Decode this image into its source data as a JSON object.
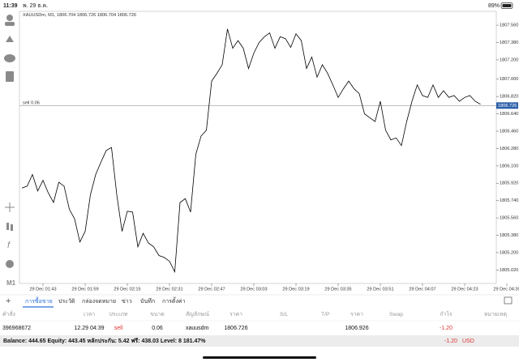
{
  "status_bar": {
    "time": "11:39",
    "date": "พ. 29 ธ.ค.",
    "battery": "89%"
  },
  "chart_data": {
    "type": "line",
    "title": "XAUUSDm, M1, 1806.704 1806.726 1806.704 1806.726",
    "timeframe": "M1",
    "color": "#000000",
    "categories": [
      null,
      null,
      null,
      null,
      "29 Dec 01:43",
      null,
      null,
      null,
      null,
      null,
      null,
      null,
      "29 Dec 01:59",
      null,
      null,
      null,
      null,
      null,
      null,
      null,
      "29 Dec 02:15",
      null,
      null,
      null,
      null,
      null,
      null,
      null,
      "29 Dec 02:31",
      null,
      null,
      null,
      null,
      null,
      null,
      null,
      "29 Dec 02:47",
      null,
      null,
      null,
      null,
      null,
      null,
      null,
      "29 Dec 03:03",
      null,
      null,
      null,
      null,
      null,
      null,
      null,
      "29 Dec 03:19",
      null,
      null,
      null,
      null,
      null,
      null,
      null,
      "29 Dec 03:35",
      null,
      null,
      null,
      null,
      null,
      null,
      null,
      "29 Dec 03:51",
      null,
      null,
      null,
      null,
      null,
      null,
      null,
      "29 Dec 04:07",
      null,
      null,
      null,
      null,
      null,
      null,
      null,
      "29 Dec 04:23",
      null,
      null,
      null,
      null,
      null,
      null,
      null,
      "29 Dec 04:39"
    ],
    "values": [
      1805.87,
      1805.89,
      1806.01,
      1805.84,
      1805.95,
      1805.82,
      1805.72,
      1805.93,
      1805.89,
      1805.65,
      1805.55,
      1805.31,
      1805.42,
      1805.8,
      1806.01,
      1806.14,
      1806.26,
      1806.29,
      1805.8,
      1805.42,
      1805.63,
      1805.62,
      1805.26,
      1805.4,
      1805.3,
      1805.26,
      1805.17,
      1805.15,
      1805.11,
      1805.0,
      1805.72,
      1805.76,
      1805.62,
      1806.22,
      1806.41,
      1806.47,
      1806.98,
      1807.06,
      1807.15,
      1807.52,
      1807.32,
      1807.4,
      1807.32,
      1807.11,
      1807.27,
      1807.38,
      1807.44,
      1807.48,
      1807.32,
      1807.44,
      1807.42,
      1807.33,
      1807.47,
      1807.4,
      1807.11,
      1807.23,
      1807.02,
      1807.15,
      1807.06,
      1806.94,
      1806.81,
      1806.9,
      1806.98,
      1806.9,
      1806.85,
      1806.64,
      1806.6,
      1806.56,
      1806.77,
      1806.47,
      1806.37,
      1806.39,
      1806.31,
      1806.56,
      1806.77,
      1806.94,
      1806.83,
      1806.81,
      1806.94,
      1806.81,
      1806.88,
      1806.81,
      1806.83,
      1806.77,
      1806.81,
      1806.83,
      1806.77,
      1806.74,
      null,
      null,
      null,
      null,
      null
    ],
    "ylim": [
      1804.88,
      1807.67
    ],
    "yticks": [
      {
        "value": 1805.02,
        "label": "1805.020"
      },
      {
        "value": 1805.2,
        "label": "1805.200"
      },
      {
        "value": 1805.38,
        "label": "1805.380"
      },
      {
        "value": 1805.56,
        "label": "1805.560"
      },
      {
        "value": 1805.74,
        "label": "1805.740"
      },
      {
        "value": 1805.92,
        "label": "1805.920"
      },
      {
        "value": 1806.1,
        "label": "1806.100"
      },
      {
        "value": 1806.28,
        "label": "1806.280"
      },
      {
        "value": 1806.46,
        "label": "1806.460"
      },
      {
        "value": 1806.64,
        "label": "1806.640"
      },
      {
        "value": 1806.82,
        "label": "1806.820"
      },
      {
        "value": 1807,
        "label": "1807.000"
      },
      {
        "value": 1807.2,
        "label": "1807.200"
      },
      {
        "value": 1807.38,
        "label": "1807.380"
      },
      {
        "value": 1807.56,
        "label": "1807.560"
      }
    ],
    "price_line": {
      "value": 1806.726,
      "label": "1806.726"
    },
    "order_label": "sell 0.06",
    "grid": false
  },
  "tabs": [
    "การซื้อขาย",
    "ประวัติ",
    "กล่องจดหมาย",
    "ข่าว",
    "บันทึก",
    "การตั้งค่า"
  ],
  "table": {
    "headers": [
      "คำสั่ง",
      "เวลา",
      "ประเภท",
      "ขนาด",
      "สัญลักษณ์",
      "ราคา",
      "S/L",
      "T/P",
      "ราคา",
      "Swap",
      "กำไร",
      "หมายเหตุ"
    ],
    "rows": [
      [
        "396968672",
        "12.29 04:39",
        "sell",
        "0.06",
        "xauusdm",
        "1806.726",
        "",
        "",
        "1806.926",
        "",
        "-1.20",
        ""
      ]
    ]
  },
  "footer": {
    "summary": "Balance: 444.65 Equity: 443.45 หลักประกัน: 5.42 ฟรี: 438.03 Level: 8 181.47%",
    "profit": "-1.20",
    "currency": "USD"
  }
}
